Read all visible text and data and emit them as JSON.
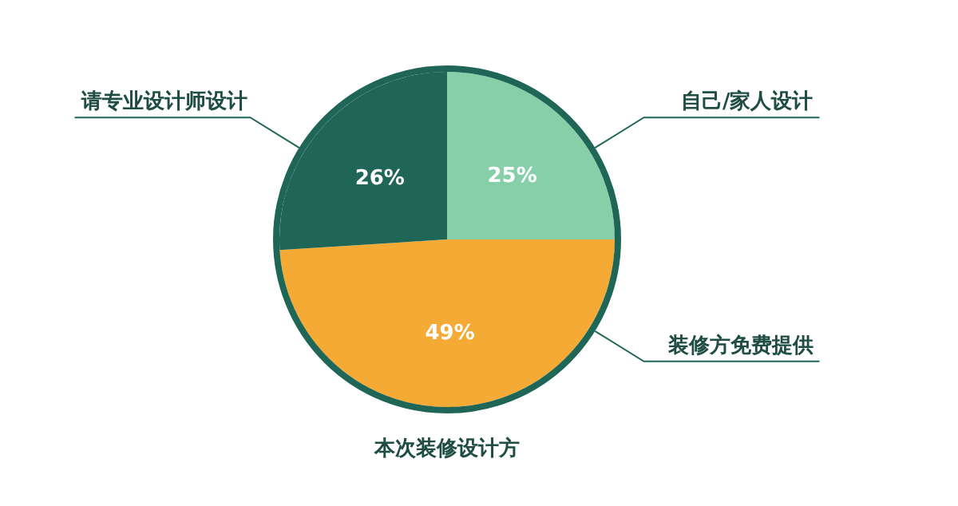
{
  "chart_data": {
    "type": "pie",
    "title": "本次装修设计方",
    "categories": [
      "自己/家人设计",
      "装修方免费提供",
      "请专业设计师设计"
    ],
    "values": [
      25,
      49,
      26
    ],
    "colors": [
      "#86cfa9",
      "#f5aa35",
      "#1f6657"
    ],
    "value_labels": [
      "25%",
      "49%",
      "26%"
    ]
  }
}
